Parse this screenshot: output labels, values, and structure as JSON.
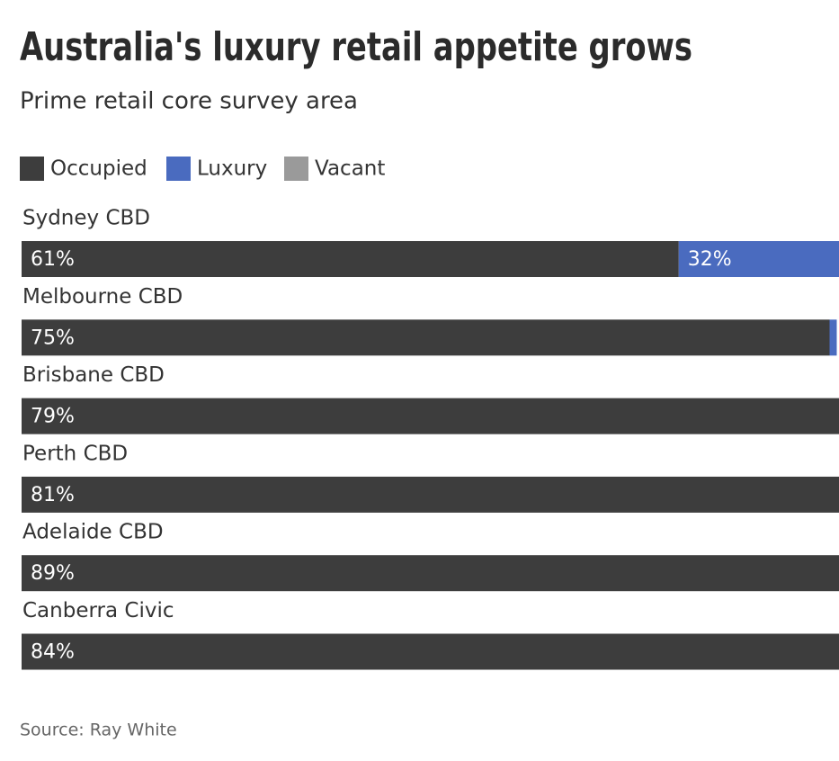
{
  "chart_data": {
    "type": "stacked-bar-horizontal",
    "title": "Australia's luxury retail appetite grows",
    "subtitle": "Prime retail core survey area",
    "source": "Source: Ray White",
    "categories": [
      "Sydney CBD",
      "Melbourne CBD",
      "Brisbane CBD",
      "Perth CBD",
      "Adelaide CBD",
      "Canberra Civic"
    ],
    "series": [
      {
        "name": "Occupied",
        "color": "#3d3d3d",
        "values": [
          61,
          75,
          79,
          81,
          89,
          84
        ],
        "value_labels": [
          "61%",
          "75%",
          "79%",
          "81%",
          "89%",
          "84%"
        ]
      },
      {
        "name": "Luxury",
        "color": "#4a6bbf",
        "values": [
          32,
          null,
          null,
          null,
          null,
          null
        ],
        "value_labels": [
          "32%",
          null,
          null,
          null,
          null,
          null
        ]
      },
      {
        "name": "Vacant",
        "color": "#9a9a9a",
        "values": [
          null,
          null,
          null,
          null,
          null,
          null
        ]
      }
    ],
    "xlim": [
      0,
      100
    ],
    "legend": "top-left"
  }
}
